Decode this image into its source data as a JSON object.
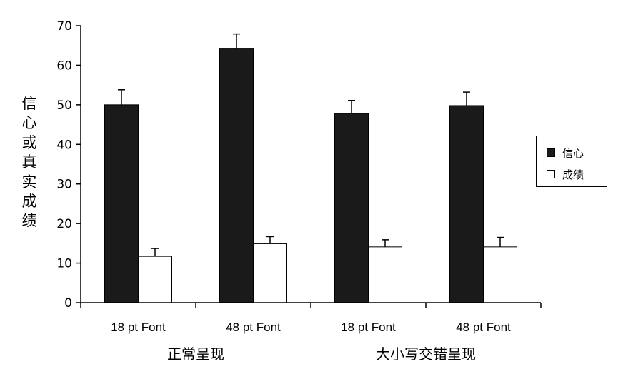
{
  "chart_data": {
    "type": "bar",
    "title": "",
    "ylabel": "信心或真实成绩",
    "ylim": [
      0,
      70
    ],
    "yticks": [
      0,
      10,
      20,
      30,
      40,
      50,
      60,
      70
    ],
    "categories": [
      "18 pt Font",
      "48 pt Font",
      "18 pt Font",
      "48 pt Font"
    ],
    "groups": [
      {
        "label": "正常呈现",
        "categories": [
          0,
          1
        ]
      },
      {
        "label": "大小写交错呈现",
        "categories": [
          2,
          3
        ]
      }
    ],
    "series": [
      {
        "name": "信心",
        "color": "#1a1a1a",
        "values": [
          50,
          64.3,
          47.8,
          49.8
        ],
        "errors": [
          3.8,
          3.6,
          3.3,
          3.4
        ]
      },
      {
        "name": "成绩",
        "color": "#ffffff",
        "values": [
          11.7,
          14.9,
          14.1,
          14.1
        ],
        "errors": [
          2.0,
          1.8,
          1.8,
          2.4
        ]
      }
    ],
    "grid": false,
    "legend": "right"
  }
}
